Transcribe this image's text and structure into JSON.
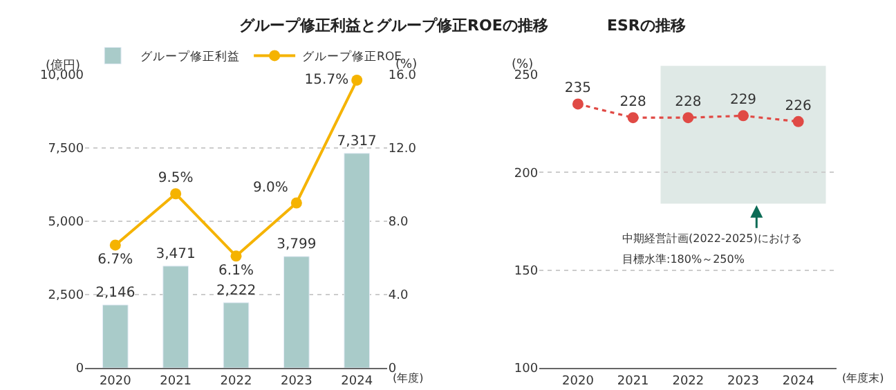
{
  "chart_data": [
    {
      "type": "bar",
      "title": "グループ修正利益とグループ修正ROEの推移",
      "ylabel": "(億円)",
      "y2label": "(%)",
      "xlabel": "(年度)",
      "categories": [
        "2020",
        "2021",
        "2022",
        "2023",
        "2024"
      ],
      "series": [
        {
          "name": "グループ修正利益",
          "type": "bar",
          "color": "#a9cbc9",
          "values": [
            2146,
            3471,
            2222,
            3799,
            7317
          ],
          "value_labels": [
            "2,146",
            "3,471",
            "2,222",
            "3,799",
            "7,317"
          ]
        },
        {
          "name": "グループ修正ROE",
          "type": "line",
          "axis": "y2",
          "color": "#f5b300",
          "marker": "circle",
          "values": [
            6.7,
            9.5,
            6.1,
            9.0,
            15.7
          ],
          "value_labels": [
            "6.7%",
            "9.5%",
            "6.1%",
            "9.0%",
            "15.7%"
          ]
        }
      ],
      "ylim": [
        0,
        10000
      ],
      "yticks": [
        0,
        {
          "value": 2500,
          "label": "2,500"
        },
        {
          "value": 5000,
          "label": "5,000"
        },
        {
          "value": 7500,
          "label": "7,500"
        },
        {
          "value": 10000,
          "label": "10,000"
        }
      ],
      "y2lim": [
        0,
        16
      ],
      "y2ticks": [
        0,
        {
          "value": 4,
          "label": "4.0"
        },
        {
          "value": 8,
          "label": "8.0"
        },
        {
          "value": 12,
          "label": "12.0"
        },
        {
          "value": 16,
          "label": "16.0"
        }
      ],
      "grid": "y",
      "legend": "top"
    },
    {
      "type": "line",
      "title": "ESRの推移",
      "ylabel": "(%)",
      "xlabel": "(年度末)",
      "x": [
        2020,
        2021,
        2022,
        2023,
        2024
      ],
      "series": [
        {
          "color": "#e04a45",
          "values": [
            235,
            228,
            228,
            229,
            226
          ]
        }
      ],
      "marker": "circle",
      "line_style": "dotted",
      "data_labels": true,
      "xlim": [
        2019.3,
        2024.7
      ],
      "xticks": [
        2020,
        2021,
        2022,
        2023,
        2024
      ],
      "ylim": [
        100,
        250
      ],
      "yticks": [
        100,
        150,
        200,
        250
      ],
      "grid": "y",
      "bands": [
        {
          "axis": "x",
          "from": 2021.5,
          "to": 2024.5,
          "color": "#dfe9e6"
        }
      ],
      "annotations": [
        "中期経営計画(2022-2025)における",
        "目標水準:180%～250%"
      ]
    }
  ]
}
